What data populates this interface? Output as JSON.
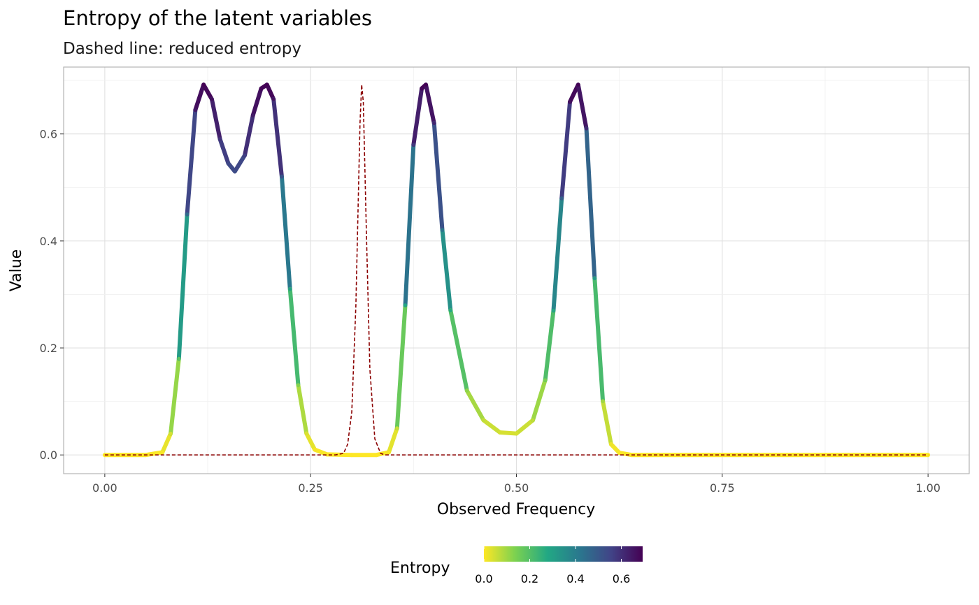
{
  "chart_data": {
    "type": "line",
    "title": "Entropy of the latent variables",
    "subtitle": "Dashed line: reduced entropy",
    "xlabel": "Observed Frequency",
    "ylabel": "Value",
    "xlim": [
      -0.05,
      1.05
    ],
    "ylim": [
      -0.035,
      0.725
    ],
    "x_ticks": [
      0.0,
      0.25,
      0.5,
      0.75,
      1.0
    ],
    "x_tick_labels": [
      "0.00",
      "0.25",
      "0.50",
      "0.75",
      "1.00"
    ],
    "y_ticks": [
      0.0,
      0.2,
      0.4,
      0.6
    ],
    "y_tick_labels": [
      "0.0",
      "0.2",
      "0.4",
      "0.6"
    ],
    "grid": true,
    "legend": {
      "title": "Entropy",
      "type": "colorbar",
      "placement": "bottom",
      "range": [
        0,
        0.693
      ],
      "ticks": [
        0.0,
        0.2,
        0.4,
        0.6
      ],
      "tick_labels": [
        "0.0",
        "0.2",
        "0.4",
        "0.6"
      ],
      "palette": [
        "#FDE725",
        "#7AD151",
        "#22A884",
        "#2A788E",
        "#414487",
        "#440154"
      ]
    },
    "series": [
      {
        "style": "solid, colored by entropy value",
        "x": [
          0.0,
          0.05,
          0.07,
          0.08,
          0.09,
          0.1,
          0.11,
          0.12,
          0.13,
          0.14,
          0.15,
          0.158,
          0.17,
          0.18,
          0.19,
          0.197,
          0.205,
          0.215,
          0.225,
          0.235,
          0.245,
          0.255,
          0.27,
          0.3,
          0.33,
          0.345,
          0.355,
          0.365,
          0.375,
          0.385,
          0.39,
          0.4,
          0.41,
          0.42,
          0.44,
          0.46,
          0.48,
          0.5,
          0.52,
          0.535,
          0.545,
          0.555,
          0.565,
          0.575,
          0.585,
          0.595,
          0.605,
          0.615,
          0.625,
          0.64,
          0.7,
          0.8,
          0.9,
          1.0
        ],
        "y": [
          0.0,
          0.0,
          0.005,
          0.04,
          0.18,
          0.45,
          0.645,
          0.692,
          0.665,
          0.59,
          0.545,
          0.53,
          0.56,
          0.635,
          0.685,
          0.692,
          0.665,
          0.52,
          0.31,
          0.13,
          0.04,
          0.01,
          0.001,
          0.0,
          0.0,
          0.005,
          0.05,
          0.28,
          0.58,
          0.685,
          0.692,
          0.62,
          0.42,
          0.27,
          0.12,
          0.065,
          0.042,
          0.04,
          0.065,
          0.14,
          0.27,
          0.48,
          0.66,
          0.692,
          0.61,
          0.33,
          0.1,
          0.02,
          0.004,
          0.0,
          0.0,
          0.0,
          0.0,
          0.0
        ]
      },
      {
        "name": "reduced entropy",
        "style": "dashed",
        "color": "#8B0000",
        "x": [
          0.0,
          0.28,
          0.29,
          0.295,
          0.3,
          0.305,
          0.31,
          0.312,
          0.314,
          0.318,
          0.322,
          0.328,
          0.335,
          0.34,
          0.36,
          0.6,
          1.0
        ],
        "y": [
          0.0,
          0.0,
          0.003,
          0.02,
          0.08,
          0.28,
          0.62,
          0.692,
          0.66,
          0.4,
          0.16,
          0.03,
          0.003,
          0.0,
          0.0,
          0.0,
          0.0
        ]
      }
    ]
  }
}
